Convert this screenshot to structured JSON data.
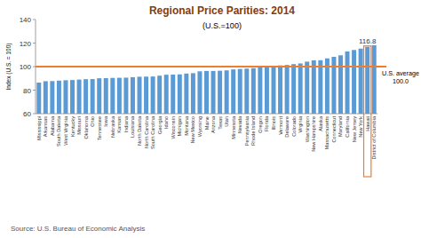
{
  "chart_data": {
    "type": "bar",
    "title": "Regional Price Parities: 2014",
    "subtitle": "(U.S.=100)",
    "y_label": "Index (U.S. = 100)",
    "source": "Source: U.S. Bureau of Economic Analysis",
    "categories": [
      "Mississippi",
      "Arkansas",
      "Alabama",
      "South Dakota",
      "West Virginia",
      "Kentucky",
      "Missouri",
      "Oklahoma",
      "Ohio",
      "Tennessee",
      "Iowa",
      "Nebraska",
      "Kansas",
      "Indiana",
      "Louisiana",
      "North Dakota",
      "North Carolina",
      "South Carolina",
      "Georgia",
      "Idaho",
      "Wisconsin",
      "Michigan",
      "Montana",
      "New Mexico",
      "Wyoming",
      "Maine",
      "Arizona",
      "Texas",
      "Utah",
      "Minnesota",
      "Nevada",
      "Pennsylvania",
      "Rhode Island",
      "Oregon",
      "Florida",
      "Illinois",
      "Vermont",
      "Delaware",
      "Colorado",
      "Virginia",
      "Washington",
      "New Hampshire",
      "Alaska",
      "Massachusetts",
      "Connecticut",
      "Maryland",
      "California",
      "New Jersey",
      "New York",
      "Hawaii",
      "District of Columbia"
    ],
    "values": [
      86.4,
      87.6,
      87.7,
      88.1,
      88.4,
      88.6,
      89.0,
      89.3,
      89.4,
      90.1,
      90.2,
      90.4,
      90.5,
      90.6,
      91.0,
      91.4,
      91.5,
      91.6,
      92.3,
      93.1,
      93.2,
      93.4,
      94.1,
      94.4,
      96.0,
      96.3,
      96.3,
      96.5,
      96.8,
      97.6,
      98.0,
      98.3,
      98.7,
      99.7,
      99.9,
      100.6,
      101.0,
      101.4,
      102.1,
      102.7,
      104.2,
      105.3,
      105.4,
      107.0,
      108.3,
      109.6,
      112.9,
      114.1,
      115.3,
      116.8,
      118.2
    ],
    "color": "#5b9bd5",
    "ylim": [
      60,
      140
    ],
    "yticks": [
      60,
      80,
      100,
      120,
      140
    ],
    "grid": false,
    "reference_line": {
      "value": 100,
      "label": "U.S. average",
      "value_label": "100.0",
      "color": "#ed7d31"
    },
    "annotations": [
      {
        "category": "Hawaii",
        "value": 116.8,
        "label": "116.8",
        "color": "#ed7d31"
      }
    ]
  }
}
